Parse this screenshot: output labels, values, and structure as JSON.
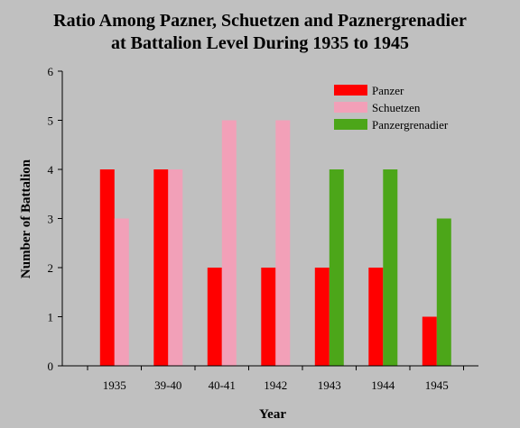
{
  "chart_data": {
    "type": "bar",
    "title": "Ratio Among Pazner, Schuetzen and Paznergrenadier",
    "subtitle": "at Battalion Level During 1935 to 1945",
    "xlabel": "Year",
    "ylabel": "Number of Battalion",
    "categories": [
      "1935",
      "39-40",
      "40-41",
      "1942",
      "1943",
      "1944",
      "1945"
    ],
    "y_ticks": [
      "0",
      "1",
      "2",
      "3",
      "4",
      "5",
      "6"
    ],
    "ylim": [
      0,
      6
    ],
    "grid": false,
    "legend_position": "top-right",
    "series": [
      {
        "name": "Panzer",
        "color": "#ff0000",
        "values": [
          4,
          4,
          2,
          2,
          2,
          2,
          1
        ]
      },
      {
        "name": "Schuetzen",
        "color": "#f2a0b8",
        "values": [
          3,
          4,
          5,
          5,
          null,
          null,
          null
        ]
      },
      {
        "name": "Panzergrenadier",
        "color": "#4ca619",
        "values": [
          null,
          null,
          null,
          null,
          4,
          4,
          3
        ]
      }
    ]
  }
}
